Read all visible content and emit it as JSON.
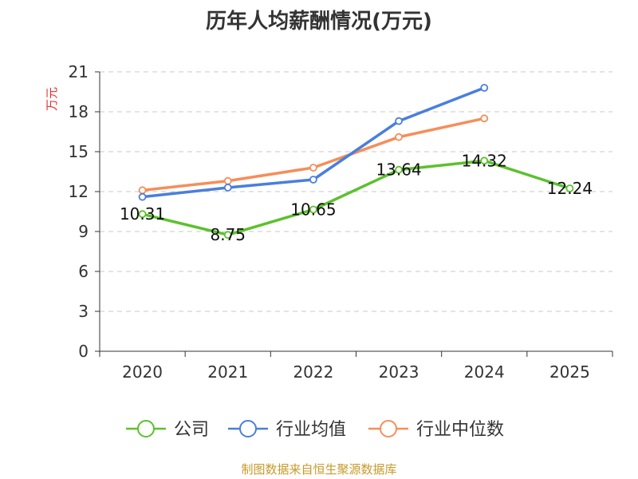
{
  "chart_data": {
    "type": "line",
    "title": "历年人均薪酬情况(万元)",
    "xlabel": "",
    "ylabel": "万元",
    "categories": [
      "2020",
      "2021",
      "2022",
      "2023",
      "2024",
      "2025"
    ],
    "ylim": [
      0,
      21
    ],
    "yticks": [
      0,
      3,
      6,
      9,
      12,
      15,
      18,
      21
    ],
    "grid": true,
    "legend_position": "bottom",
    "series": [
      {
        "name": "公司",
        "color": "#5cc12d",
        "values": [
          10.31,
          8.75,
          10.65,
          13.64,
          14.32,
          12.24
        ],
        "labels": [
          "10.31",
          "8.75",
          "10.65",
          "13.64",
          "14.32",
          "12.24"
        ]
      },
      {
        "name": "行业均值",
        "color": "#4a7fdb",
        "values": [
          11.6,
          12.3,
          12.9,
          17.3,
          19.8,
          null
        ]
      },
      {
        "name": "行业中位数",
        "color": "#f58e5a",
        "values": [
          12.1,
          12.8,
          13.8,
          16.1,
          17.5,
          null
        ]
      }
    ],
    "source": "制图数据来自恒生聚源数据库"
  }
}
